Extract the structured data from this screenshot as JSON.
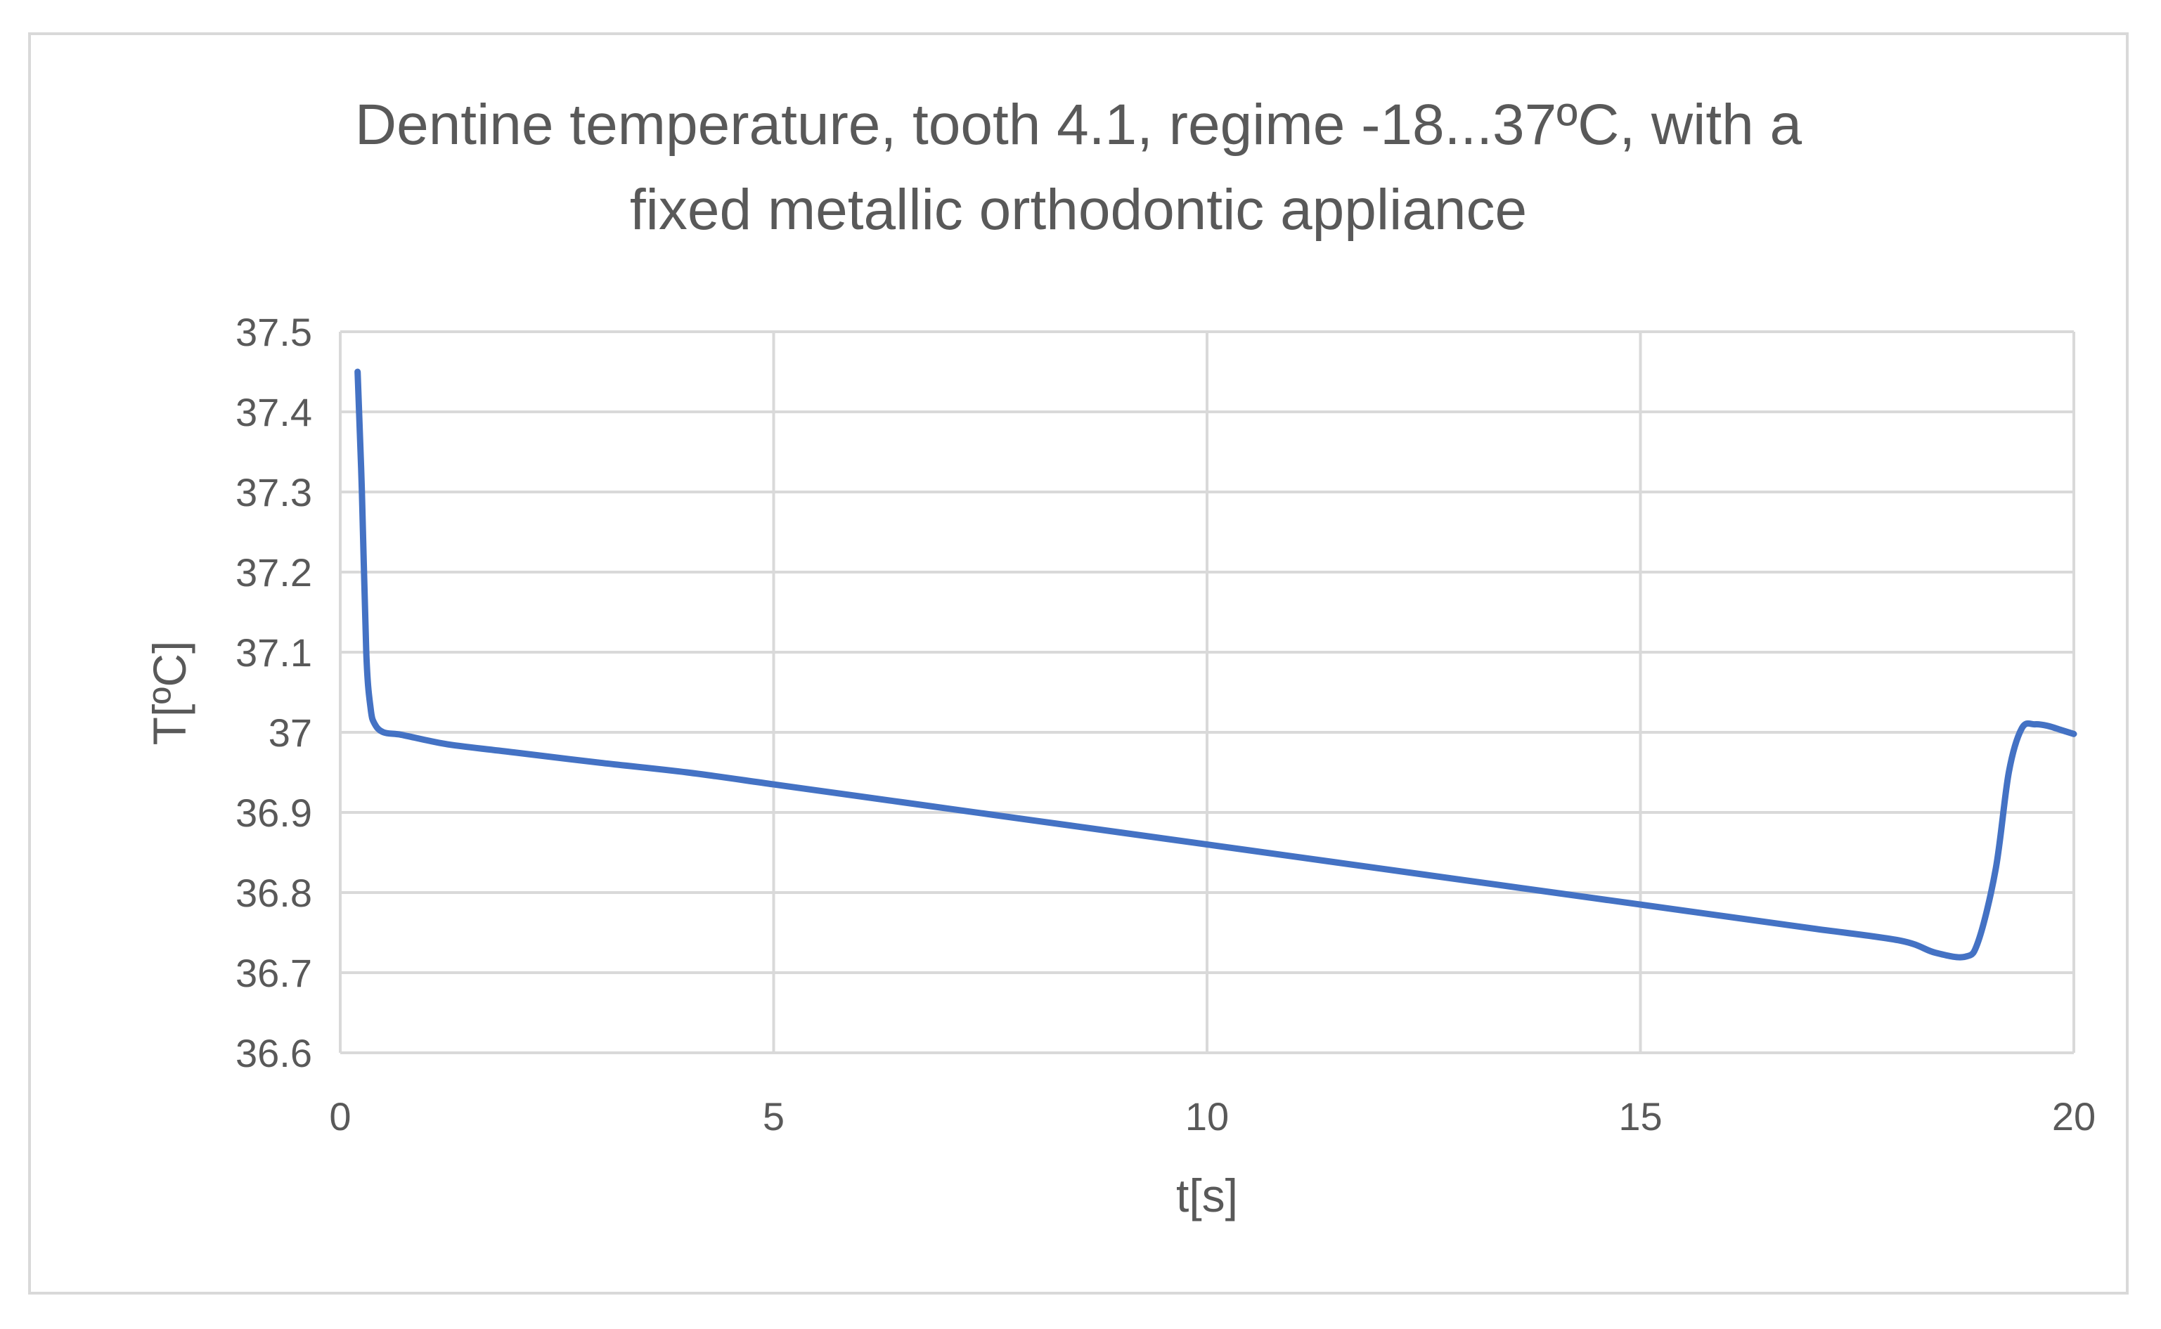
{
  "chart_data": {
    "type": "line",
    "title_lines": [
      "Dentine temperature, tooth 4.1, regime -18...37ºC, with a",
      "fixed metallic orthodontic appliance"
    ],
    "xlabel": "t[s]",
    "ylabel": "T[ºC]",
    "xlim": [
      0,
      20
    ],
    "ylim": [
      36.6,
      37.5
    ],
    "x_ticks": [
      "0",
      "5",
      "10",
      "15",
      "20"
    ],
    "x_tick_values": [
      0,
      5,
      10,
      15,
      20
    ],
    "y_ticks": [
      "36.6",
      "36.7",
      "36.8",
      "36.9",
      "37",
      "37.1",
      "37.2",
      "37.3",
      "37.4",
      "37.5"
    ],
    "y_tick_values": [
      36.6,
      36.7,
      36.8,
      36.9,
      37.0,
      37.1,
      37.2,
      37.3,
      37.4,
      37.5
    ],
    "grid": true,
    "legend": "none",
    "series": [
      {
        "color": "#4472c4",
        "x": [
          0.2,
          0.25,
          0.3,
          0.35,
          0.4,
          0.5,
          0.7,
          1.0,
          1.3,
          2.0,
          3.0,
          4.0,
          5.0,
          6.0,
          7.0,
          8.0,
          9.0,
          10.0,
          11.0,
          12.0,
          13.0,
          14.0,
          15.0,
          16.0,
          17.0,
          18.0,
          18.4,
          18.75,
          18.9,
          19.1,
          19.25,
          19.4,
          19.55,
          19.7,
          19.85,
          20.0
        ],
        "y": [
          37.45,
          37.3,
          37.1,
          37.03,
          37.01,
          37.0,
          36.997,
          36.99,
          36.984,
          36.975,
          36.962,
          36.95,
          36.935,
          36.92,
          36.905,
          36.89,
          36.875,
          36.86,
          36.845,
          36.83,
          36.815,
          36.8,
          36.785,
          36.77,
          36.755,
          36.74,
          36.725,
          36.72,
          36.74,
          36.83,
          36.95,
          37.005,
          37.01,
          37.008,
          37.003,
          36.998
        ]
      }
    ]
  }
}
